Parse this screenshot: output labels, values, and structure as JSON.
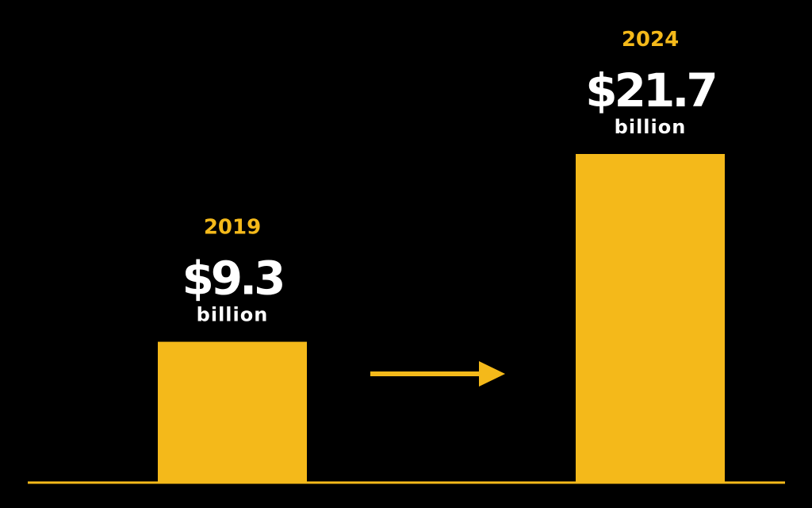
{
  "chart_data": {
    "type": "bar",
    "categories": [
      "2019",
      "2024"
    ],
    "values": [
      9.3,
      21.7
    ],
    "value_labels": [
      "$9.3",
      "$21.7"
    ],
    "unit_label": "billion",
    "ylim": [
      0,
      22
    ],
    "grid": false,
    "legend": "none",
    "arrow_between_bars": true
  },
  "colors": {
    "background": "#000000",
    "bar": "#F4B91A",
    "year_text": "#F4B91A",
    "value_text": "#FFFFFF",
    "baseline": "#F4B91A",
    "arrow": "#F4B91A"
  }
}
